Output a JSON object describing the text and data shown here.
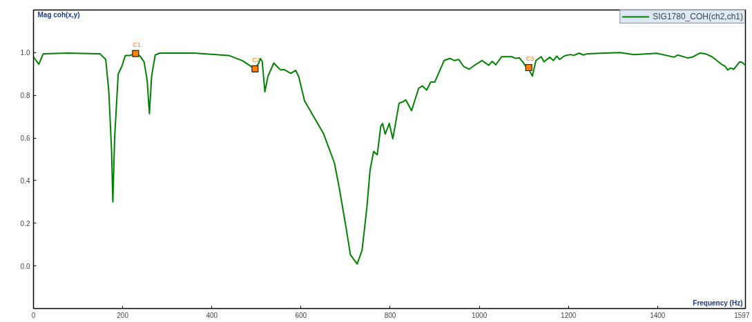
{
  "chart_data": {
    "type": "line",
    "xlabel": "Frequency (Hz)",
    "ylabel": "Mag coh(x,y)",
    "xlim": [
      0,
      1597
    ],
    "ylim": [
      -0.2,
      1.2
    ],
    "xticks": [
      0,
      200,
      400,
      600,
      800,
      1000,
      1200,
      1400,
      1597
    ],
    "yticks": [
      {
        "value": 0,
        "label": "0.0"
      },
      {
        "value": 0.2,
        "label": "0.2"
      },
      {
        "value": 0.4,
        "label": "0.4"
      },
      {
        "value": 0.6,
        "label": "0.6"
      },
      {
        "value": 0.8,
        "label": "0.8"
      },
      {
        "value": 1,
        "label": "1.0"
      }
    ],
    "grid": false,
    "legend": "top right",
    "line_style": "solid",
    "series": [
      {
        "name": "SIG1780_COH(ch2,ch1)",
        "marker": "none",
        "color": "#008000",
        "x": [
          0,
          12,
          22,
          76,
          149,
          162,
          169,
          175,
          178,
          182,
          190,
          198,
          206,
          216,
          229,
          239,
          248,
          255,
          260,
          265,
          273,
          283,
          360,
          438,
          469,
          484,
          497,
          505,
          509,
          513,
          519,
          526,
          539,
          554,
          562,
          577,
          588,
          595,
          608,
          629,
          650,
          675,
          686,
          701,
          711,
          726,
          737,
          748,
          755,
          763,
          771,
          779,
          783,
          789,
          798,
          806,
          820,
          828,
          835,
          848,
          864,
          872,
          882,
          891,
          900,
          921,
          934,
          944,
          954,
          965,
          977,
          993,
          1006,
          1021,
          1029,
          1037,
          1050,
          1073,
          1081,
          1090,
          1099,
          1106,
          1112,
          1119,
          1127,
          1139,
          1145,
          1158,
          1166,
          1174,
          1180,
          1192,
          1205,
          1212,
          1224,
          1233,
          1243,
          1280,
          1316,
          1347,
          1398,
          1437,
          1445,
          1468,
          1478,
          1495,
          1507,
          1522,
          1543,
          1552,
          1557,
          1564,
          1571,
          1584,
          1589,
          1597
        ],
        "values": [
          0.98,
          0.946,
          0.995,
          0.998,
          0.995,
          0.968,
          0.817,
          0.547,
          0.3,
          0.6,
          0.9,
          0.935,
          0.987,
          0.987,
          0.996,
          0.984,
          0.957,
          0.87,
          0.714,
          0.89,
          0.989,
          0.998,
          0.998,
          0.987,
          0.962,
          0.941,
          0.924,
          0.95,
          0.972,
          0.96,
          0.817,
          0.89,
          0.951,
          0.919,
          0.921,
          0.903,
          0.917,
          0.887,
          0.774,
          0.698,
          0.623,
          0.483,
          0.364,
          0.181,
          0.052,
          0.009,
          0.073,
          0.278,
          0.45,
          0.537,
          0.521,
          0.655,
          0.668,
          0.618,
          0.668,
          0.596,
          0.763,
          0.769,
          0.779,
          0.728,
          0.833,
          0.844,
          0.825,
          0.862,
          0.862,
          0.963,
          0.973,
          0.963,
          0.968,
          0.935,
          0.922,
          0.946,
          0.963,
          0.941,
          0.959,
          0.943,
          0.981,
          0.981,
          0.973,
          0.976,
          0.952,
          0.93,
          0.919,
          0.89,
          0.963,
          0.981,
          0.957,
          0.979,
          0.963,
          0.984,
          0.968,
          0.986,
          0.991,
          0.987,
          0.998,
          0.989,
          0.995,
          0.998,
          1.0,
          0.991,
          0.997,
          0.979,
          0.989,
          0.975,
          0.979,
          0.998,
          0.995,
          0.981,
          0.946,
          0.935,
          0.919,
          0.928,
          0.922,
          0.957,
          0.955,
          0.941
        ]
      },
      {
        "type": "scatter",
        "marker": "square",
        "color": "#ff7f00",
        "x": [
          229,
          497,
          1111
        ],
        "values": [
          0.996,
          0.924,
          0.93
        ]
      }
    ],
    "annotations": [
      {
        "text": "C1",
        "x": 229,
        "y": 0.996
      },
      {
        "text": "C2",
        "x": 497,
        "y": 0.924
      },
      {
        "text": "C3",
        "x": 1111,
        "y": 0.93
      }
    ]
  }
}
